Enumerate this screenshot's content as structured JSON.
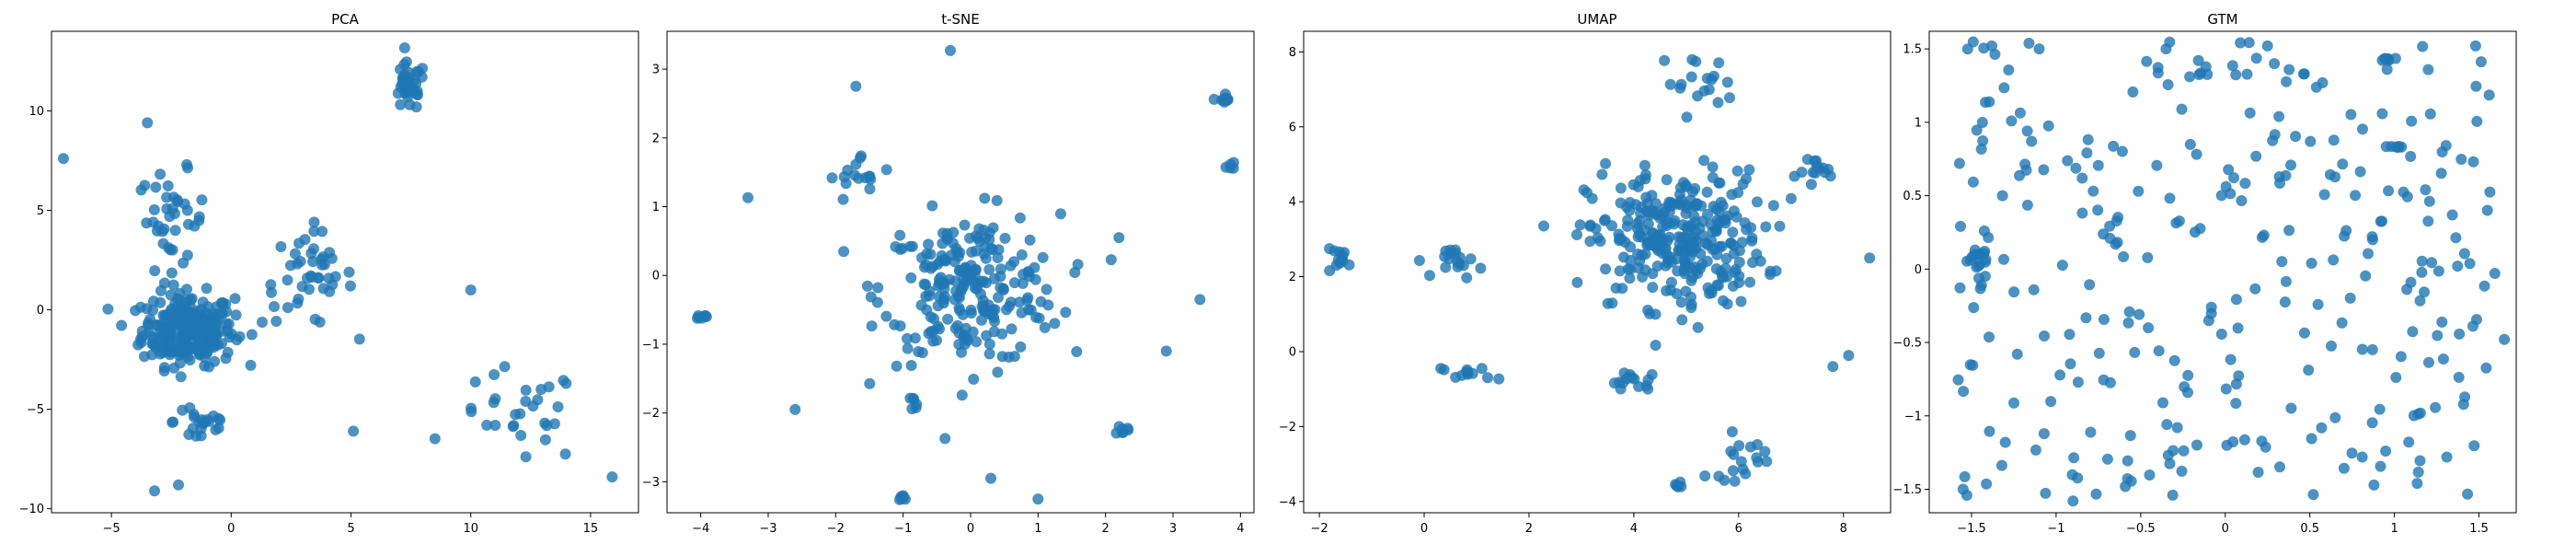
{
  "figure": {
    "point_color": "#1f77b4",
    "point_opacity": 0.8
  },
  "chart_data": [
    {
      "type": "scatter",
      "title": "PCA",
      "xlabel": "",
      "ylabel": "",
      "xlim": [
        -7.5,
        17
      ],
      "ylim": [
        -10.2,
        14.0
      ],
      "xticks": [
        -5,
        0,
        5,
        10,
        15
      ],
      "yticks": [
        -10,
        -5,
        0,
        5,
        10
      ],
      "grid": false,
      "clusters": [
        {
          "center": [
            -1.8,
            -1.0
          ],
          "spread": [
            1.6,
            1.5
          ],
          "n": 260
        },
        {
          "center": [
            -2.5,
            4.5
          ],
          "spread": [
            1.2,
            2.0
          ],
          "n": 40
        },
        {
          "center": [
            3.2,
            1.6
          ],
          "spread": [
            1.6,
            2.0
          ],
          "n": 45
        },
        {
          "center": [
            -1.2,
            -5.6
          ],
          "spread": [
            1.0,
            1.1
          ],
          "n": 22
        },
        {
          "center": [
            7.4,
            11.2
          ],
          "spread": [
            0.6,
            1.0
          ],
          "n": 35
        },
        {
          "center": [
            12.0,
            -5.4
          ],
          "spread": [
            2.2,
            2.0
          ],
          "n": 30
        }
      ],
      "points": [
        [
          -7.0,
          7.6
        ],
        [
          10.0,
          1.0
        ],
        [
          15.9,
          -8.4
        ],
        [
          5.1,
          -6.1
        ],
        [
          -2.2,
          -8.8
        ],
        [
          -3.5,
          9.4
        ],
        [
          -3.2,
          -9.1
        ]
      ]
    },
    {
      "type": "scatter",
      "title": "t-SNE",
      "xlabel": "",
      "ylabel": "",
      "xlim": [
        -4.5,
        4.2
      ],
      "ylim": [
        -3.45,
        3.55
      ],
      "xticks": [
        -4,
        -3,
        -2,
        -1,
        0,
        1,
        2,
        3,
        4
      ],
      "yticks": [
        -3,
        -2,
        -1,
        0,
        1,
        2,
        3
      ],
      "grid": false,
      "clusters": [
        {
          "center": [
            0.0,
            -0.2
          ],
          "spread": [
            1.1,
            0.9
          ],
          "n": 230
        },
        {
          "center": [
            -1.6,
            1.4
          ],
          "spread": [
            0.4,
            0.3
          ],
          "n": 16
        },
        {
          "center": [
            3.75,
            2.55
          ],
          "spread": [
            0.08,
            0.08
          ],
          "n": 10
        },
        {
          "center": [
            3.85,
            1.6
          ],
          "spread": [
            0.05,
            0.07
          ],
          "n": 5
        },
        {
          "center": [
            -4.0,
            -0.6
          ],
          "spread": [
            0.12,
            0.03
          ],
          "n": 7
        },
        {
          "center": [
            -1.0,
            -3.2
          ],
          "spread": [
            0.05,
            0.06
          ],
          "n": 6
        },
        {
          "center": [
            2.25,
            -2.25
          ],
          "spread": [
            0.06,
            0.06
          ],
          "n": 7
        },
        {
          "center": [
            -0.8,
            -1.85
          ],
          "spread": [
            0.06,
            0.1
          ],
          "n": 6
        }
      ],
      "points": [
        [
          -0.3,
          3.27
        ],
        [
          -3.3,
          1.13
        ],
        [
          1.0,
          -3.25
        ],
        [
          0.3,
          -2.95
        ],
        [
          2.9,
          -1.1
        ],
        [
          3.4,
          -0.35
        ],
        [
          -2.6,
          -1.95
        ],
        [
          -1.7,
          2.75
        ],
        [
          2.2,
          0.55
        ]
      ]
    },
    {
      "type": "scatter",
      "title": "UMAP",
      "xlabel": "",
      "ylabel": "",
      "xlim": [
        -2.3,
        8.9
      ],
      "ylim": [
        -4.3,
        8.55
      ],
      "xticks": [
        -2,
        0,
        2,
        4,
        6,
        8
      ],
      "yticks": [
        -4,
        -2,
        0,
        2,
        4,
        6,
        8
      ],
      "grid": false,
      "clusters": [
        {
          "center": [
            4.8,
            3.0
          ],
          "spread": [
            1.4,
            1.5
          ],
          "n": 300
        },
        {
          "center": [
            5.2,
            7.2
          ],
          "spread": [
            0.6,
            0.6
          ],
          "n": 18
        },
        {
          "center": [
            7.6,
            4.8
          ],
          "spread": [
            0.4,
            0.4
          ],
          "n": 14
        },
        {
          "center": [
            -1.6,
            2.5
          ],
          "spread": [
            0.25,
            0.2
          ],
          "n": 12
        },
        {
          "center": [
            0.7,
            2.4
          ],
          "spread": [
            0.35,
            0.35
          ],
          "n": 18
        },
        {
          "center": [
            0.8,
            -0.6
          ],
          "spread": [
            0.4,
            0.2
          ],
          "n": 12
        },
        {
          "center": [
            6.0,
            -2.8
          ],
          "spread": [
            0.5,
            0.5
          ],
          "n": 18
        },
        {
          "center": [
            4.0,
            -0.8
          ],
          "spread": [
            0.5,
            0.2
          ],
          "n": 14
        },
        {
          "center": [
            4.9,
            -3.6
          ],
          "spread": [
            0.1,
            0.08
          ],
          "n": 5
        }
      ],
      "points": [
        [
          8.5,
          2.5
        ],
        [
          7.8,
          -0.4
        ],
        [
          8.1,
          -0.1
        ]
      ]
    },
    {
      "type": "scatter",
      "title": "GTM",
      "xlabel": "",
      "ylabel": "",
      "xlim": [
        -1.75,
        1.72
      ],
      "ylim": [
        -1.66,
        1.62
      ],
      "xticks": [
        -1.5,
        -1.0,
        -0.5,
        0.0,
        0.5,
        1.0,
        1.5
      ],
      "yticks": [
        -1.5,
        -1.0,
        -0.5,
        0.0,
        0.5,
        1.0,
        1.5
      ],
      "grid": false,
      "clusters": [
        {
          "center": [
            0.0,
            0.0
          ],
          "spread": [
            1.6,
            1.55
          ],
          "n": 300,
          "uniform": true
        },
        {
          "center": [
            -1.45,
            0.05
          ],
          "spread": [
            0.05,
            0.12
          ],
          "n": 14
        },
        {
          "center": [
            0.95,
            1.43
          ],
          "spread": [
            0.03,
            0.01
          ],
          "n": 6
        },
        {
          "center": [
            1.0,
            0.83
          ],
          "spread": [
            0.1,
            0.01
          ],
          "n": 6
        }
      ],
      "points": [
        [
          -1.38,
          1.52
        ],
        [
          -0.35,
          1.5
        ],
        [
          -1.1,
          1.5
        ],
        [
          0.25,
          1.52
        ],
        [
          1.48,
          1.52
        ],
        [
          -1.55,
          -1.5
        ],
        [
          -0.9,
          -1.58
        ],
        [
          -1.3,
          -1.18
        ],
        [
          1.65,
          -0.48
        ],
        [
          1.55,
          0.4
        ]
      ]
    }
  ]
}
